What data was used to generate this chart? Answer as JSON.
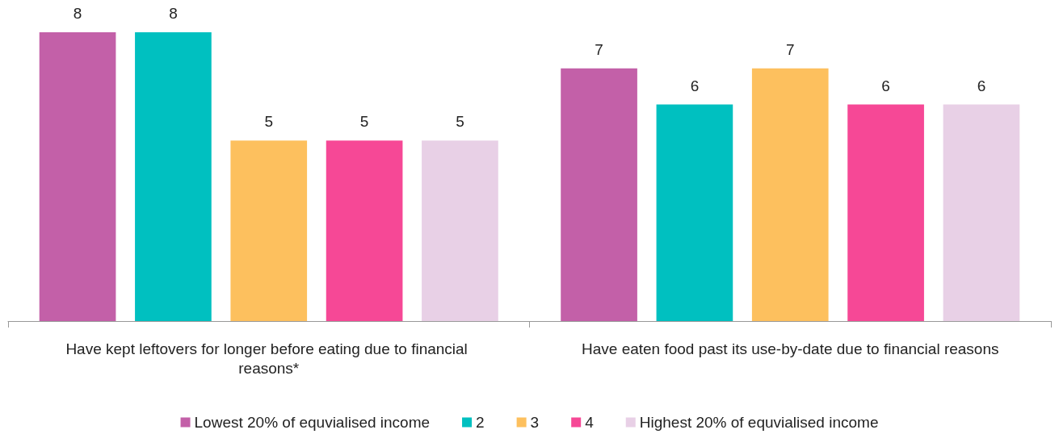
{
  "chart_data": {
    "type": "bar",
    "categories": [
      "Have kept leftovers for longer before eating due to financial reasons*",
      "Have eaten food past its use-by-date due to financial reasons"
    ],
    "series": [
      {
        "name": "Lowest 20% of equvialised income",
        "color": "#c360a8",
        "values": [
          8,
          7
        ]
      },
      {
        "name": "2",
        "color": "#00c0c0",
        "values": [
          8,
          6
        ]
      },
      {
        "name": "3",
        "color": "#fdc05e",
        "values": [
          5,
          7
        ]
      },
      {
        "name": "4",
        "color": "#f64896",
        "values": [
          5,
          6
        ]
      },
      {
        "name": "Highest 20% of equvialised income",
        "color": "#e8d0e6",
        "values": [
          5,
          6
        ]
      }
    ],
    "data_labels": true,
    "legend": "bottom"
  }
}
